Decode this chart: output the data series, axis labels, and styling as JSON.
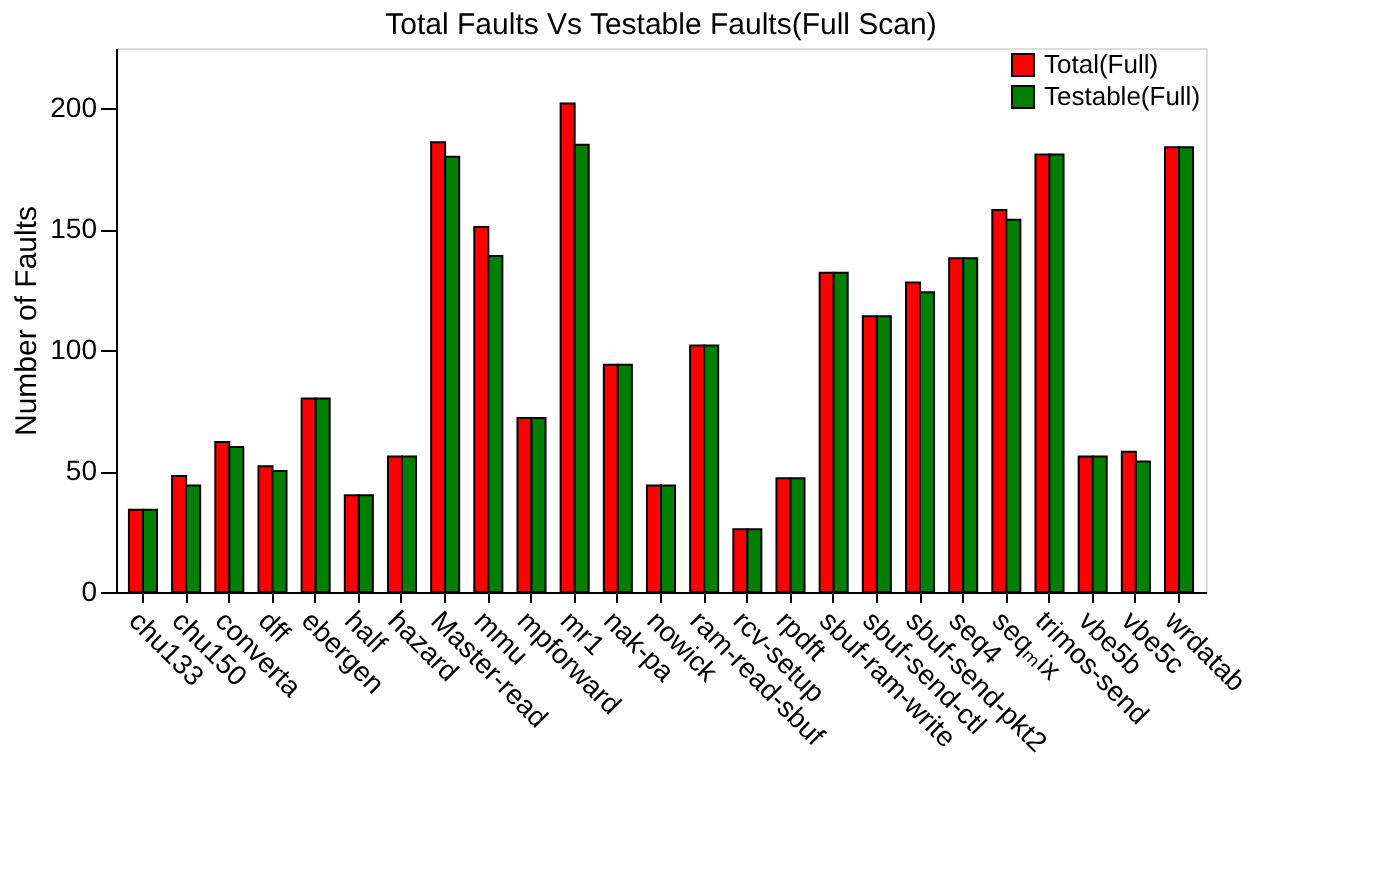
{
  "chart_data": {
    "type": "bar",
    "title": "Total Faults Vs Testable Faults(Full Scan)",
    "ylabel": "Number of Faults",
    "categories": [
      "chu133",
      "chu150",
      "converta",
      "dff",
      "ebergen",
      "half",
      "hazard",
      "Master-read",
      "mmu",
      "mpforward",
      "mr1",
      "nak-pa",
      "nowick",
      "ram-read-sbuf",
      "rcv-setup",
      "rpdft",
      "sbuf-ram-write",
      "sbuf-send-ctl",
      "sbuf-send-pkt2",
      "seq4",
      "seqₘix",
      "trimos-send",
      "vbe5b",
      "vbe5c",
      "wrdatab"
    ],
    "series": [
      {
        "name": "Total(Full)",
        "color": "#ff0000",
        "values": [
          34,
          48,
          62,
          52,
          80,
          40,
          56,
          186,
          151,
          72,
          202,
          94,
          44,
          102,
          26,
          47,
          132,
          114,
          128,
          138,
          158,
          181,
          56,
          58,
          184
        ]
      },
      {
        "name": "Testable(Full)",
        "color": "#008000",
        "values": [
          34,
          44,
          60,
          50,
          80,
          40,
          56,
          180,
          139,
          72,
          185,
          94,
          44,
          102,
          26,
          47,
          132,
          114,
          124,
          138,
          154,
          181,
          56,
          54,
          184
        ]
      }
    ],
    "ylim": [
      0,
      225
    ],
    "yticks": [
      0,
      50,
      100,
      150,
      200
    ],
    "grid": false,
    "legend": "top right"
  }
}
